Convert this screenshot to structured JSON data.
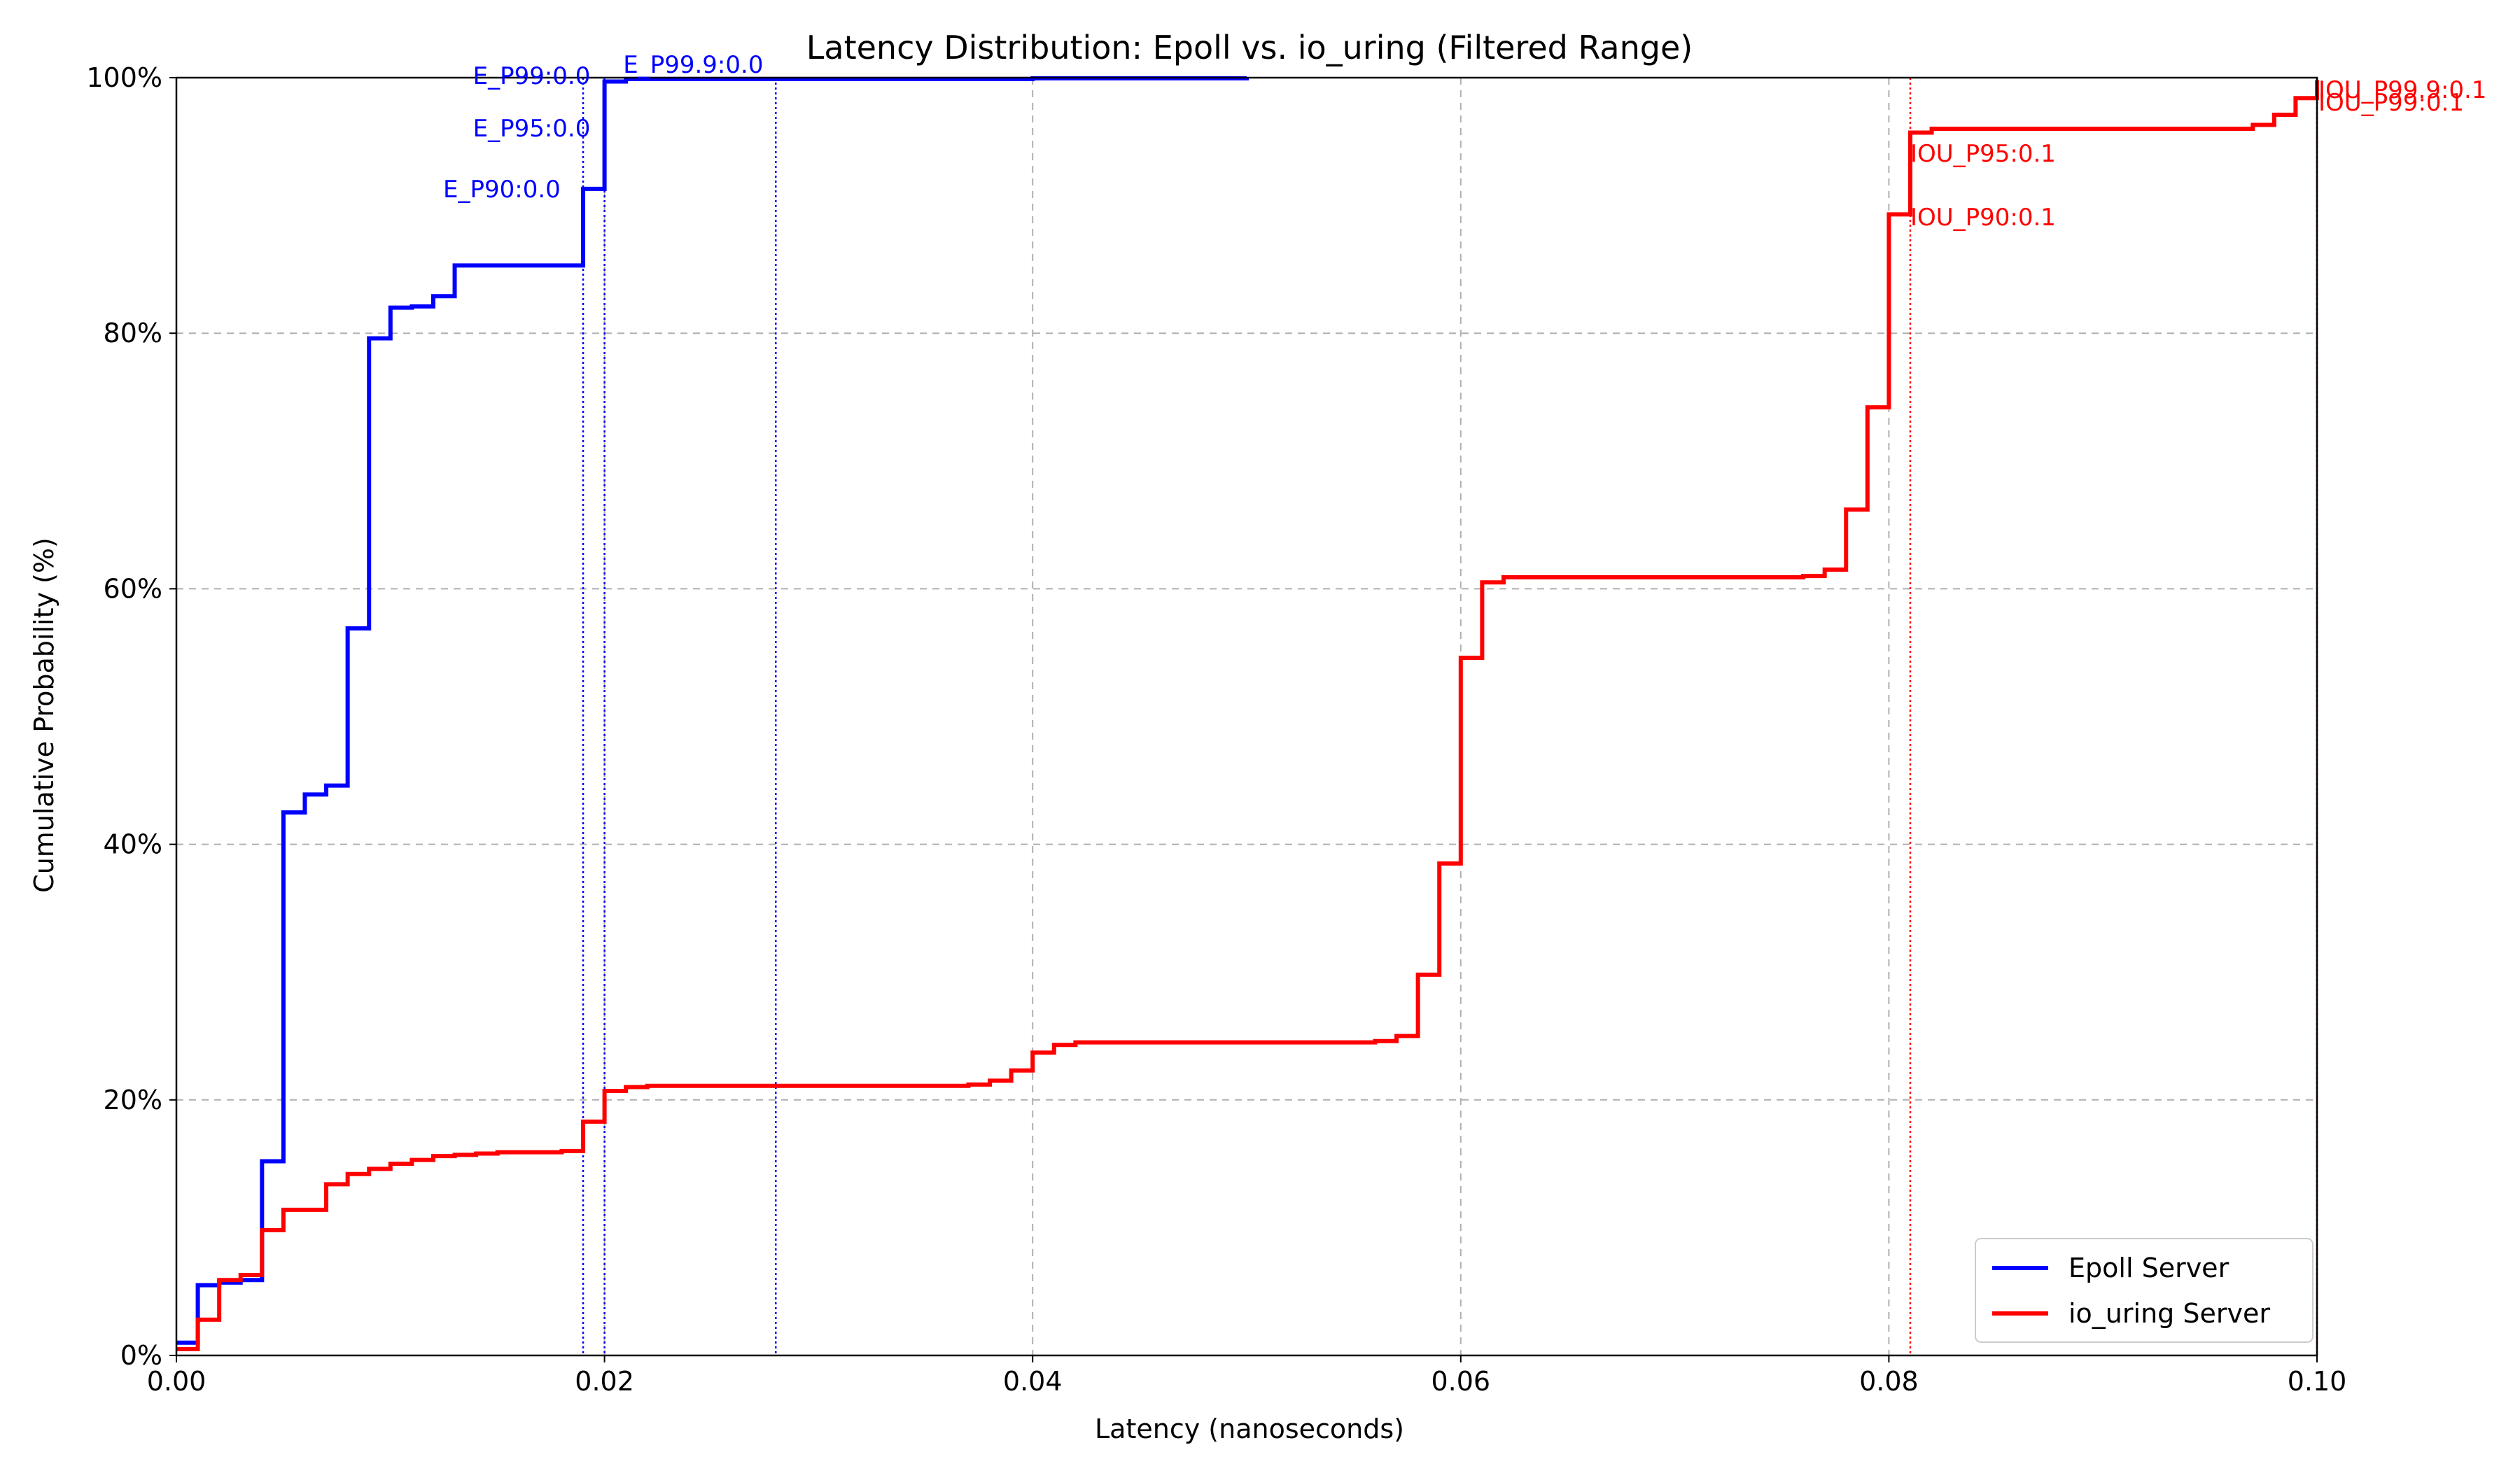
{
  "chart_data": {
    "type": "line",
    "title": "Latency Distribution: Epoll vs. io_uring (Filtered Range)",
    "xlabel": "Latency (nanoseconds)",
    "ylabel": "Cumulative Probability (%)",
    "xlim": [
      0.0,
      0.1
    ],
    "ylim": [
      0,
      100
    ],
    "x_ticks": [
      0.0,
      0.02,
      0.04,
      0.06,
      0.08,
      0.1
    ],
    "x_tick_labels": [
      "0.00",
      "0.02",
      "0.04",
      "0.06",
      "0.08",
      "0.10"
    ],
    "y_ticks": [
      0,
      20,
      40,
      60,
      80,
      100
    ],
    "y_tick_labels": [
      "0%",
      "20%",
      "40%",
      "60%",
      "80%",
      "100%"
    ],
    "grid": "dashed",
    "legend_position": "bottom-right",
    "series": [
      {
        "name": "Epoll Server",
        "color": "#0000ff",
        "step": "post",
        "x": [
          0.0,
          0.001,
          0.002,
          0.003,
          0.004,
          0.005,
          0.006,
          0.007,
          0.008,
          0.009,
          0.01,
          0.011,
          0.012,
          0.013,
          0.014,
          0.015,
          0.016,
          0.017,
          0.018,
          0.019,
          0.02,
          0.021,
          0.03,
          0.04,
          0.05
        ],
        "y": [
          1.0,
          5.5,
          5.7,
          5.9,
          15.2,
          42.5,
          43.9,
          44.6,
          56.9,
          79.6,
          82.0,
          82.1,
          82.9,
          85.3,
          85.3,
          85.3,
          85.3,
          85.3,
          85.3,
          91.3,
          99.7,
          99.9,
          99.9,
          99.95,
          100.0
        ]
      },
      {
        "name": "io_uring Server",
        "color": "#ff0000",
        "step": "post",
        "x": [
          0.0,
          0.001,
          0.002,
          0.003,
          0.004,
          0.005,
          0.006,
          0.007,
          0.008,
          0.009,
          0.01,
          0.011,
          0.012,
          0.013,
          0.014,
          0.015,
          0.016,
          0.017,
          0.018,
          0.019,
          0.02,
          0.021,
          0.022,
          0.037,
          0.038,
          0.039,
          0.04,
          0.041,
          0.042,
          0.056,
          0.057,
          0.058,
          0.059,
          0.06,
          0.061,
          0.062,
          0.076,
          0.077,
          0.078,
          0.079,
          0.08,
          0.081,
          0.082,
          0.097,
          0.098,
          0.099,
          0.1
        ],
        "y": [
          0.5,
          2.8,
          5.9,
          6.3,
          9.8,
          11.4,
          11.4,
          13.4,
          14.2,
          14.6,
          15.0,
          15.3,
          15.6,
          15.7,
          15.8,
          15.9,
          15.9,
          15.9,
          16.0,
          18.3,
          20.7,
          21.0,
          21.1,
          21.2,
          21.5,
          22.3,
          23.7,
          24.3,
          24.5,
          24.6,
          25.0,
          29.8,
          38.5,
          54.6,
          60.5,
          60.9,
          61.0,
          61.5,
          66.2,
          74.2,
          89.3,
          95.7,
          96.0,
          96.3,
          97.1,
          98.4,
          99.8
        ]
      }
    ],
    "percentile_markers": [
      {
        "label": "E_P90:0.0",
        "x": 0.019,
        "color": "#0000ff"
      },
      {
        "label": "E_P95:0.0",
        "x": 0.02,
        "color": "#0000ff"
      },
      {
        "label": "E_P99:0.0",
        "x": 0.02,
        "color": "#0000ff"
      },
      {
        "label": "E_P99.9:0.0",
        "x": 0.028,
        "color": "#0000ff"
      },
      {
        "label": "IOU_P90:0.1",
        "x": 0.081,
        "color": "#ff0000"
      },
      {
        "label": "IOU_P95:0.1",
        "x": 0.081,
        "color": "#ff0000"
      },
      {
        "label": "IOU_P99:0.1",
        "x": 0.1,
        "color": "#ff0000"
      },
      {
        "label": "IOU_P99.9:0.1",
        "x": 0.1,
        "color": "#ff0000"
      }
    ]
  }
}
